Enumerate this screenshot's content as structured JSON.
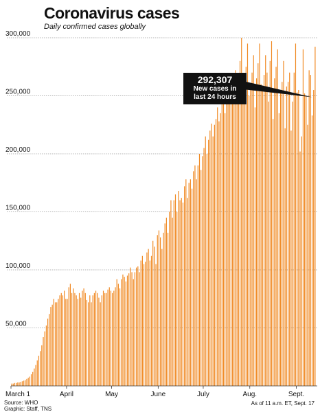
{
  "title": "Coronavirus cases",
  "subtitle": "Daily confirmed cases globally",
  "footer": {
    "source": "Source: WHO",
    "graphic": "Graphic: Staff, TNS",
    "as_of": "As of 11 a.m. ET, Sept. 17"
  },
  "colors": {
    "bar": "#f08a24",
    "bar_edge": "#c9651a",
    "grid": "#9a9a9a",
    "text": "#111111",
    "callout_bg": "#111111"
  },
  "chart_data": {
    "type": "bar",
    "title": "Coronavirus cases",
    "subtitle": "Daily confirmed cases globally",
    "xlabel": "",
    "ylabel": "",
    "ylim": [
      0,
      300000
    ],
    "y_ticks": [
      {
        "value": 300000,
        "label": "300,000"
      },
      {
        "value": 250000,
        "label": "250,000"
      },
      {
        "value": 200000,
        "label": "200,000"
      },
      {
        "value": 150000,
        "label": "150,000"
      },
      {
        "value": 100000,
        "label": "100,000"
      },
      {
        "value": 50000,
        "label": "50,000"
      }
    ],
    "x_ticks": [
      {
        "day": 0,
        "label": "March 1"
      },
      {
        "day": 37,
        "label": "April"
      },
      {
        "day": 67,
        "label": "May"
      },
      {
        "day": 98,
        "label": "June"
      },
      {
        "day": 128,
        "label": "July"
      },
      {
        "day": 159,
        "label": "Aug."
      },
      {
        "day": 190,
        "label": "Sept."
      }
    ],
    "grid": true,
    "annotation": {
      "day": 200,
      "value": 292307,
      "value_label": "292,307",
      "text_line1": "New cases in",
      "text_line2": "last 24 hours"
    },
    "values": [
      2000,
      2000,
      2500,
      2500,
      3000,
      3000,
      3500,
      4000,
      4500,
      5000,
      6000,
      7000,
      8000,
      10000,
      12000,
      15000,
      18000,
      22000,
      26000,
      30000,
      35000,
      42000,
      47000,
      52000,
      58000,
      62000,
      68000,
      70000,
      75000,
      72000,
      72000,
      75000,
      78000,
      80000,
      78000,
      82000,
      75000,
      75000,
      85000,
      88000,
      80000,
      84000,
      80000,
      78000,
      75000,
      80000,
      76000,
      82000,
      84000,
      80000,
      74000,
      72000,
      78000,
      72000,
      78000,
      80000,
      82000,
      80000,
      76000,
      72000,
      78000,
      82000,
      80000,
      80000,
      83000,
      85000,
      82000,
      80000,
      82000,
      85000,
      92000,
      88000,
      84000,
      92000,
      96000,
      94000,
      90000,
      95000,
      97000,
      102000,
      98000,
      92000,
      98000,
      102000,
      103000,
      98000,
      108000,
      112000,
      105000,
      107000,
      115000,
      118000,
      108000,
      112000,
      125000,
      120000,
      105000,
      130000,
      134000,
      128000,
      118000,
      132000,
      140000,
      145000,
      132000,
      150000,
      160000,
      145000,
      160000,
      165000,
      150000,
      168000,
      160000,
      162000,
      158000,
      172000,
      178000,
      162000,
      175000,
      178000,
      170000,
      185000,
      190000,
      178000,
      190000,
      200000,
      186000,
      198000,
      205000,
      215000,
      200000,
      212000,
      220000,
      226000,
      215000,
      225000,
      230000,
      240000,
      228000,
      235000,
      245000,
      255000,
      235000,
      245000,
      255000,
      265000,
      250000,
      258000,
      262000,
      272000,
      255000,
      265000,
      280000,
      300000,
      255000,
      262000,
      275000,
      295000,
      250000,
      260000,
      270000,
      285000,
      240000,
      265000,
      278000,
      295000,
      260000,
      255000,
      268000,
      285000,
      270000,
      245000,
      280000,
      297000,
      230000,
      265000,
      275000,
      290000,
      235000,
      255000,
      262000,
      280000,
      222000,
      258000,
      262000,
      270000,
      220000,
      245000,
      270000,
      295000,
      253000,
      255000,
      202000,
      215000,
      290000,
      252000,
      250000,
      225000,
      272000,
      268000,
      233000,
      255000,
      292307
    ]
  }
}
